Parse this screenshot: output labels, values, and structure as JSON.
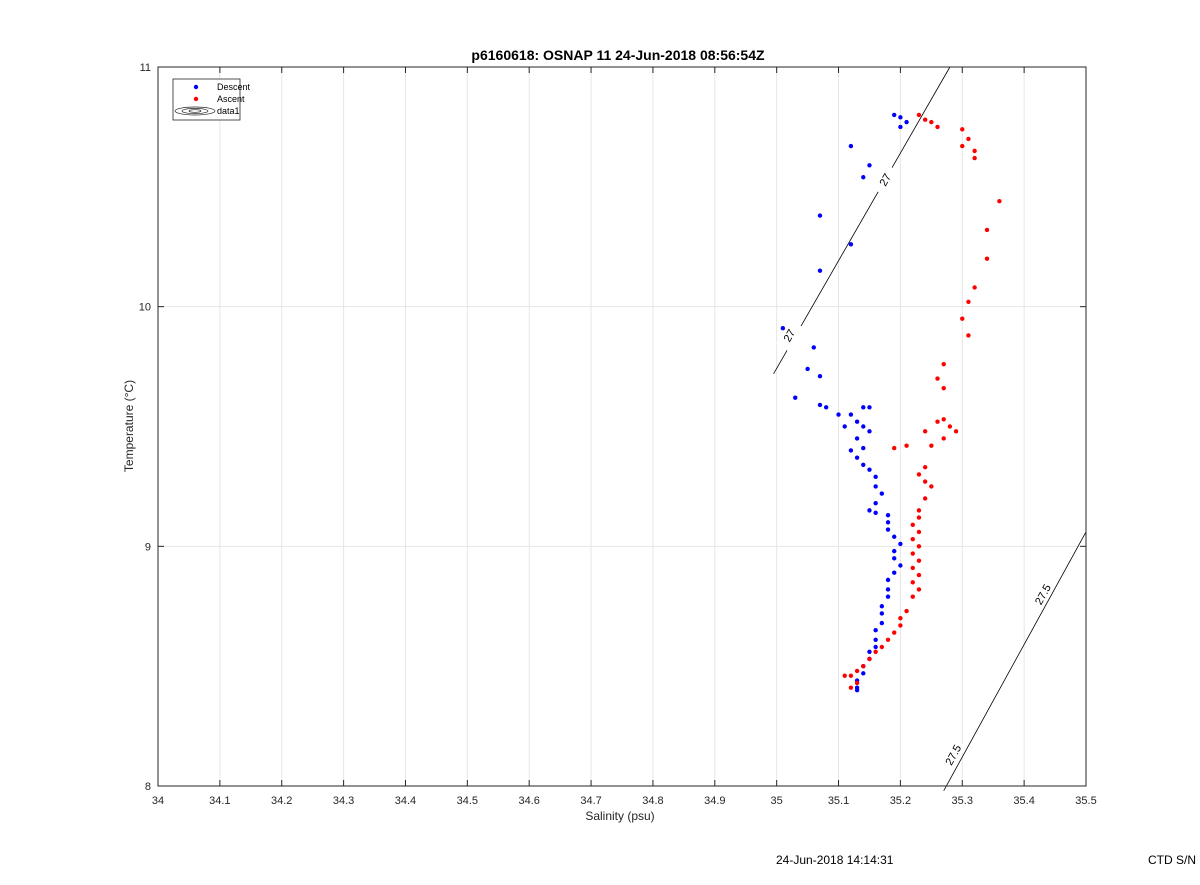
{
  "chart_data": {
    "type": "scatter",
    "title": "p6160618: OSNAP 11 24-Jun-2018 08:56:54Z",
    "xlabel": "Salinity (psu)",
    "ylabel": "Temperature (°C)",
    "xlim": [
      34,
      35.5
    ],
    "ylim": [
      8,
      11
    ],
    "x_ticks": [
      34,
      34.1,
      34.2,
      34.3,
      34.4,
      34.5,
      34.6,
      34.7,
      34.8,
      34.9,
      35,
      35.1,
      35.2,
      35.3,
      35.4,
      35.5
    ],
    "x_tick_labels": [
      "34",
      "34.1",
      "34.2",
      "34.3",
      "34.4",
      "34.5",
      "34.6",
      "34.7",
      "34.8",
      "34.9",
      "35",
      "35.1",
      "35.2",
      "35.3",
      "35.4",
      "35.5"
    ],
    "y_ticks": [
      8,
      9,
      10,
      11
    ],
    "y_tick_labels": [
      "8",
      "9",
      "10",
      "11"
    ],
    "grid": true,
    "legend_position": "top-left",
    "legend": [
      {
        "label": "Descent",
        "marker": "dot",
        "color": "#0000ff"
      },
      {
        "label": "Ascent",
        "marker": "dot",
        "color": "#ff0000"
      },
      {
        "label": "data1",
        "marker": "contour",
        "color": "#000000"
      }
    ],
    "series": [
      {
        "name": "Descent",
        "color": "#0000ff",
        "points": [
          [
            35.19,
            10.8
          ],
          [
            35.2,
            10.79
          ],
          [
            35.21,
            10.77
          ],
          [
            35.2,
            10.75
          ],
          [
            35.12,
            10.67
          ],
          [
            35.15,
            10.59
          ],
          [
            35.14,
            10.54
          ],
          [
            35.07,
            10.38
          ],
          [
            35.12,
            10.26
          ],
          [
            35.07,
            10.15
          ],
          [
            35.01,
            9.91
          ],
          [
            35.06,
            9.83
          ],
          [
            35.05,
            9.74
          ],
          [
            35.07,
            9.71
          ],
          [
            35.03,
            9.62
          ],
          [
            35.07,
            9.59
          ],
          [
            35.08,
            9.58
          ],
          [
            35.1,
            9.55
          ],
          [
            35.12,
            9.55
          ],
          [
            35.14,
            9.58
          ],
          [
            35.15,
            9.58
          ],
          [
            35.13,
            9.52
          ],
          [
            35.11,
            9.5
          ],
          [
            35.14,
            9.5
          ],
          [
            35.15,
            9.48
          ],
          [
            35.13,
            9.45
          ],
          [
            35.14,
            9.41
          ],
          [
            35.12,
            9.4
          ],
          [
            35.13,
            9.37
          ],
          [
            35.14,
            9.34
          ],
          [
            35.15,
            9.32
          ],
          [
            35.16,
            9.29
          ],
          [
            35.16,
            9.25
          ],
          [
            35.17,
            9.22
          ],
          [
            35.16,
            9.18
          ],
          [
            35.15,
            9.15
          ],
          [
            35.16,
            9.14
          ],
          [
            35.18,
            9.13
          ],
          [
            35.18,
            9.1
          ],
          [
            35.18,
            9.07
          ],
          [
            35.19,
            9.04
          ],
          [
            35.2,
            9.01
          ],
          [
            35.19,
            8.98
          ],
          [
            35.19,
            8.95
          ],
          [
            35.2,
            8.92
          ],
          [
            35.19,
            8.89
          ],
          [
            35.18,
            8.86
          ],
          [
            35.18,
            8.82
          ],
          [
            35.18,
            8.79
          ],
          [
            35.17,
            8.75
          ],
          [
            35.17,
            8.72
          ],
          [
            35.17,
            8.68
          ],
          [
            35.16,
            8.65
          ],
          [
            35.16,
            8.61
          ],
          [
            35.16,
            8.58
          ],
          [
            35.15,
            8.56
          ],
          [
            35.15,
            8.53
          ],
          [
            35.14,
            8.5
          ],
          [
            35.14,
            8.47
          ],
          [
            35.13,
            8.44
          ],
          [
            35.13,
            8.41
          ],
          [
            35.13,
            8.4
          ]
        ]
      },
      {
        "name": "Ascent",
        "color": "#ff0000",
        "points": [
          [
            35.23,
            10.8
          ],
          [
            35.24,
            10.78
          ],
          [
            35.25,
            10.77
          ],
          [
            35.26,
            10.75
          ],
          [
            35.3,
            10.74
          ],
          [
            35.31,
            10.7
          ],
          [
            35.3,
            10.67
          ],
          [
            35.32,
            10.65
          ],
          [
            35.32,
            10.62
          ],
          [
            35.36,
            10.44
          ],
          [
            35.34,
            10.32
          ],
          [
            35.34,
            10.2
          ],
          [
            35.32,
            10.08
          ],
          [
            35.31,
            10.02
          ],
          [
            35.3,
            9.95
          ],
          [
            35.31,
            9.88
          ],
          [
            35.27,
            9.76
          ],
          [
            35.26,
            9.7
          ],
          [
            35.27,
            9.66
          ],
          [
            35.24,
            9.48
          ],
          [
            35.26,
            9.52
          ],
          [
            35.27,
            9.53
          ],
          [
            35.28,
            9.5
          ],
          [
            35.29,
            9.48
          ],
          [
            35.27,
            9.45
          ],
          [
            35.25,
            9.42
          ],
          [
            35.21,
            9.42
          ],
          [
            35.19,
            9.41
          ],
          [
            35.24,
            9.33
          ],
          [
            35.23,
            9.3
          ],
          [
            35.24,
            9.27
          ],
          [
            35.25,
            9.25
          ],
          [
            35.24,
            9.2
          ],
          [
            35.23,
            9.15
          ],
          [
            35.23,
            9.12
          ],
          [
            35.22,
            9.09
          ],
          [
            35.23,
            9.06
          ],
          [
            35.22,
            9.03
          ],
          [
            35.23,
            9.0
          ],
          [
            35.22,
            8.97
          ],
          [
            35.23,
            8.94
          ],
          [
            35.22,
            8.91
          ],
          [
            35.23,
            8.88
          ],
          [
            35.22,
            8.85
          ],
          [
            35.23,
            8.82
          ],
          [
            35.22,
            8.79
          ],
          [
            35.21,
            8.73
          ],
          [
            35.2,
            8.7
          ],
          [
            35.2,
            8.67
          ],
          [
            35.19,
            8.64
          ],
          [
            35.18,
            8.61
          ],
          [
            35.17,
            8.58
          ],
          [
            35.16,
            8.56
          ],
          [
            35.15,
            8.53
          ],
          [
            35.14,
            8.5
          ],
          [
            35.13,
            8.48
          ],
          [
            35.12,
            8.46
          ],
          [
            35.11,
            8.46
          ],
          [
            35.13,
            8.43
          ],
          [
            35.12,
            8.41
          ]
        ]
      }
    ],
    "isopycnals": [
      {
        "label": "27",
        "from": [
          34.995,
          9.72
        ],
        "to": [
          35.28,
          11.0
        ],
        "label_positions": [
          [
            35.02,
            9.88
          ],
          [
            35.175,
            10.53
          ]
        ]
      },
      {
        "label": "27.5",
        "from": [
          35.27,
          7.98
        ],
        "to": [
          35.5,
          9.06
        ],
        "label_positions": [
          [
            35.285,
            8.13
          ],
          [
            35.43,
            8.8
          ]
        ]
      }
    ]
  },
  "footer": {
    "timestamp": "24-Jun-2018 14:14:31",
    "serial": "CTD S/N"
  }
}
